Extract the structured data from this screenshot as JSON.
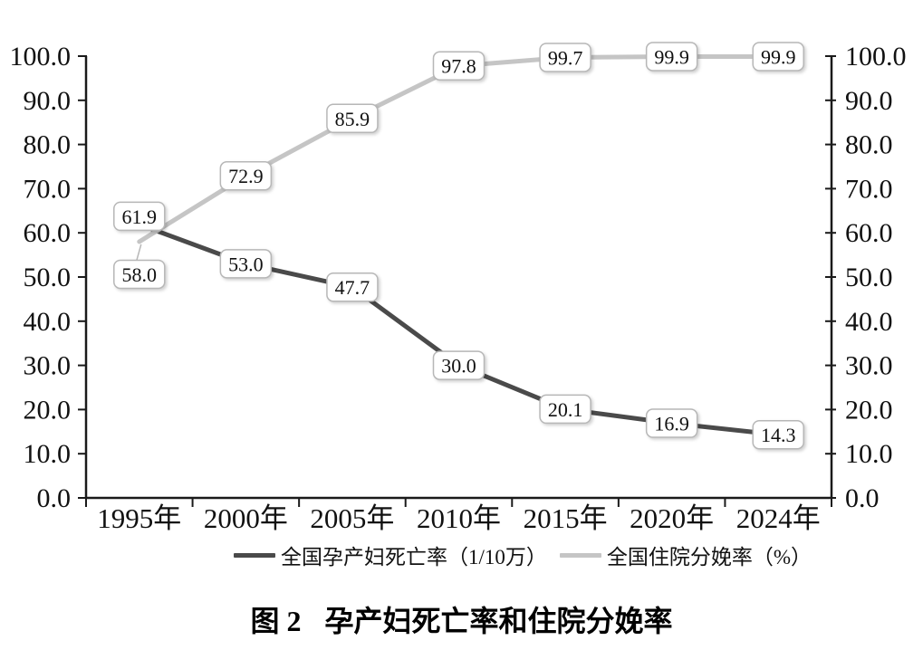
{
  "chart_data": {
    "type": "line",
    "categories": [
      "1995年",
      "2000年",
      "2005年",
      "2010年",
      "2015年",
      "2020年",
      "2024年"
    ],
    "series": [
      {
        "name": "全国孕产妇死亡率（1/10万）",
        "color": "#4a4a4a",
        "values": [
          61.9,
          53.0,
          47.7,
          30.0,
          20.1,
          16.9,
          14.3
        ]
      },
      {
        "name": "全国住院分娩率（%）",
        "color": "#c5c5c5",
        "values": [
          58.0,
          72.9,
          85.9,
          97.8,
          99.7,
          99.9,
          99.9
        ]
      }
    ],
    "ylim": [
      0,
      100
    ],
    "ytick_step": 10,
    "ytick_format_decimals": 1,
    "dual_y_axis": true,
    "grid": false,
    "markers": false,
    "data_labels_in_boxes": true,
    "legend_position": "bottom",
    "caption_label": "图 2",
    "caption_title": "孕产妇死亡率和住院分娩率"
  },
  "style_tokens": {
    "axis_color": "#1a1a1a",
    "label_box_fill": "#ffffff",
    "label_box_border": "#b7b7b7",
    "text_color": "#111111",
    "background": "#ffffff"
  }
}
